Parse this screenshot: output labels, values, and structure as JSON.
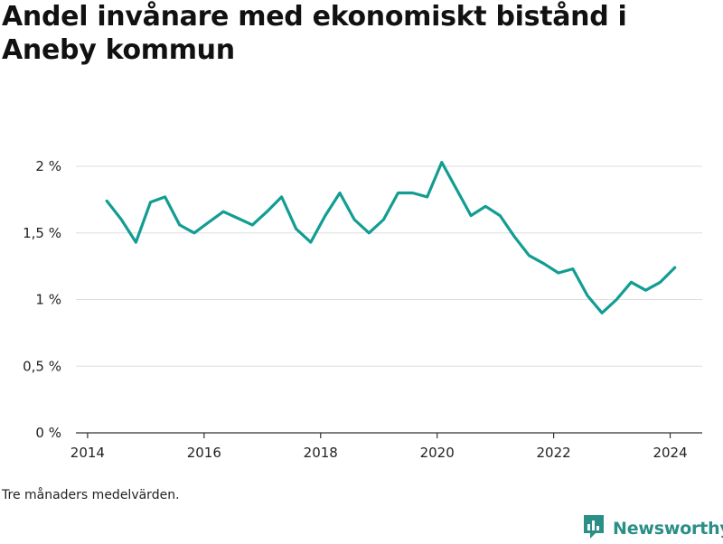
{
  "title": "Andel invånare med ekonomiskt bistånd i Aneby kommun",
  "note": "Tre månaders medelvärden.",
  "brand": {
    "name": "Newsworthy",
    "icon": "newsworthy-logo-icon"
  },
  "colors": {
    "line": "#129d92",
    "grid": "#dddddd",
    "axis": "#333333",
    "brand": "#2a8f86"
  },
  "chart_data": {
    "type": "line",
    "title": "Andel invånare med ekonomiskt bistånd i Aneby kommun",
    "xlabel": "",
    "ylabel": "",
    "xlim": [
      2013.8,
      2024.55
    ],
    "ylim": [
      0,
      2
    ],
    "grid": true,
    "x_ticks": [
      2014,
      2016,
      2018,
      2020,
      2022,
      2024
    ],
    "x_tick_labels": [
      "2014",
      "2016",
      "2018",
      "2020",
      "2022",
      "2024"
    ],
    "y_ticks": [
      0,
      0.5,
      1,
      1.5,
      2
    ],
    "y_tick_labels": [
      "0 %",
      "0,5 %",
      "1 %",
      "1,5 %",
      "2 %"
    ],
    "series": [
      {
        "x": [
          2014.33,
          2014.58,
          2014.83,
          2015.08,
          2015.33,
          2015.58,
          2015.83,
          2016.08,
          2016.33,
          2016.58,
          2016.83,
          2017.08,
          2017.33,
          2017.58,
          2017.83,
          2018.08,
          2018.33,
          2018.58,
          2018.83,
          2019.08,
          2019.33,
          2019.58,
          2019.83,
          2020.08,
          2020.33,
          2020.58,
          2020.83,
          2021.08,
          2021.33,
          2021.58,
          2021.83,
          2022.08,
          2022.33,
          2022.58,
          2022.83,
          2023.08,
          2023.33,
          2023.58,
          2023.83,
          2024.08
        ],
        "values": [
          1.74,
          1.6,
          1.43,
          1.73,
          1.77,
          1.56,
          1.5,
          1.58,
          1.66,
          1.61,
          1.56,
          1.66,
          1.77,
          1.53,
          1.43,
          1.63,
          1.8,
          1.6,
          1.5,
          1.6,
          1.8,
          1.8,
          1.77,
          2.03,
          1.83,
          1.63,
          1.7,
          1.63,
          1.47,
          1.33,
          1.27,
          1.2,
          1.23,
          1.03,
          0.9,
          1.0,
          1.13,
          1.07,
          1.13,
          1.24
        ]
      }
    ]
  }
}
